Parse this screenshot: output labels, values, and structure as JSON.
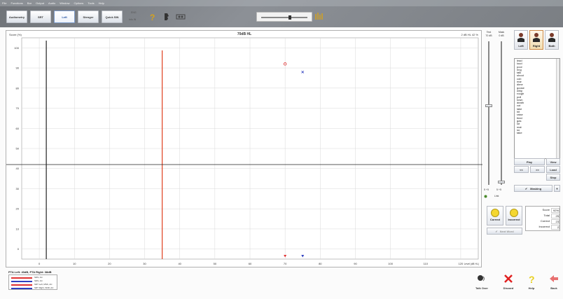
{
  "menubar": {
    "items": [
      "File",
      "Functions",
      "Bar",
      "Output",
      "Audio",
      "Window",
      "Options",
      "Tools",
      "Help"
    ]
  },
  "toolbar": {
    "buttons": [
      {
        "label": "Audiometry",
        "active": false
      },
      {
        "label": "SRT",
        "active": false
      },
      {
        "label": "Left",
        "active": true
      },
      {
        "label": "Stenger",
        "active": false
      },
      {
        "label": "Quick SIN",
        "active": false
      }
    ],
    "lang_text_top": "ENG",
    "lang_text_bottom": "Info IN",
    "icons": [
      "help-icon",
      "phone-icon",
      "settings-icon"
    ],
    "slider_icon": "dashboard-icon"
  },
  "chart_data": {
    "type": "scatter",
    "title": "70dB HL",
    "ylabel": "Score (%)",
    "level_readout": "2 dB HL 42 %",
    "x_unit": "Level (dB HL)",
    "xlim": [
      -5,
      125
    ],
    "ylim": [
      -5,
      105
    ],
    "x_ticks": [
      0,
      10,
      20,
      30,
      40,
      50,
      60,
      70,
      80,
      90,
      100,
      110,
      120
    ],
    "y_ticks": [
      0,
      10,
      20,
      30,
      40,
      50,
      60,
      70,
      80,
      90,
      100
    ],
    "grid": true,
    "vertical_lines": [
      {
        "x": 2,
        "color": "#222222"
      },
      {
        "x": 35,
        "color": "#e04020"
      }
    ],
    "horizontal_lines": [
      {
        "y": 42,
        "color": "#222222"
      }
    ],
    "series": [
      {
        "marker": "circle",
        "color": "#e03030",
        "points": [
          {
            "x": 70,
            "y": 92
          }
        ]
      },
      {
        "marker": "cross",
        "color": "#3040c0",
        "points": [
          {
            "x": 75,
            "y": 88
          }
        ]
      }
    ],
    "bottom_markers": [
      {
        "x": 70,
        "color": "#e03030"
      },
      {
        "x": 75,
        "color": "#3040c0"
      }
    ]
  },
  "level_panel": {
    "test_label": "Test",
    "test_value": "70 dB",
    "mask_label": "Mask",
    "mask_value": "0 dB",
    "test_step": "5 +5",
    "mask_step": "5 +5",
    "link_label": "Link",
    "test_level_fraction": 0.45,
    "mask_level_fraction": 0.98
  },
  "ear_panel": {
    "buttons": [
      {
        "label": "Left",
        "active": false
      },
      {
        "label": "Right",
        "active": true
      },
      {
        "label": "Both",
        "active": false
      }
    ]
  },
  "wordlist": {
    "words": [
      "lead",
      "loud",
      "pool",
      "ring",
      "talk",
      "shout",
      "cob",
      "mar",
      "dime",
      "goose",
      "whip",
      "rough",
      "pull",
      "town",
      "death",
      "vot",
      "lake",
      "hit",
      "raise",
      "tired",
      "gas",
      "lot",
      "mat",
      "so",
      "take"
    ]
  },
  "play_controls": {
    "play": "Play",
    "prev": "<<",
    "next": ">>",
    "view": "View",
    "load": "Load",
    "stop": "Stop"
  },
  "masking": {
    "label": "Masking"
  },
  "score_panel": {
    "correct": "Correct",
    "incorrect": "Incorrect",
    "next_word": "Next Word",
    "stats": [
      {
        "key": "Score",
        "value": "92%"
      },
      {
        "key": "Total",
        "value": "25"
      },
      {
        "key": "Correct",
        "value": "23"
      },
      {
        "key": "Incorrect",
        "value": "2"
      }
    ]
  },
  "bottom": {
    "pta_text": "PTA Left: 40dB, PTA Right: 38dB",
    "legend": [
      {
        "label": "SDS, AC",
        "color": "#e03030"
      },
      {
        "label": "SDS, AC",
        "color": "#3040c0"
      },
      {
        "label": "SRT Left, MSK, AC",
        "color": "#e03030"
      },
      {
        "label": "SRT Right, SNR, AC",
        "color": "#3040c0"
      }
    ],
    "buttons": [
      {
        "label": "Talk Over",
        "icon": "talk-over-icon"
      },
      {
        "label": "Discard",
        "icon": "discard-icon"
      },
      {
        "label": "Help",
        "icon": "help-icon"
      },
      {
        "label": "Back",
        "icon": "back-icon"
      }
    ]
  }
}
